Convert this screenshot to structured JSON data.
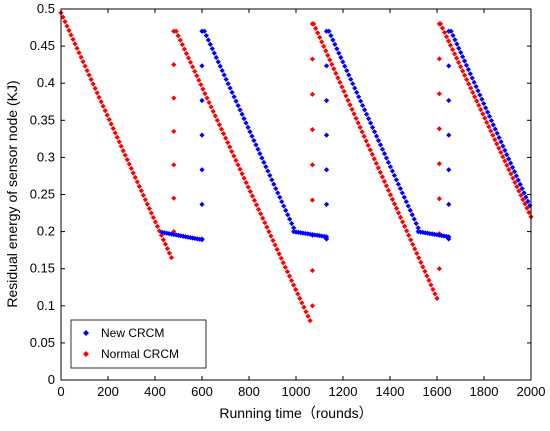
{
  "chart_data": {
    "type": "scatter",
    "xlabel": "Running time（rounds）",
    "ylabel": "Residual energy of sensor node (KJ)",
    "xlim": [
      0,
      2000
    ],
    "ylim": [
      0,
      0.5
    ],
    "xticks": [
      "0",
      "200",
      "400",
      "600",
      "800",
      "1000",
      "1200",
      "1400",
      "1600",
      "1800",
      "2000"
    ],
    "yticks": [
      "0",
      "0.05",
      "0.1",
      "0.15",
      "0.2",
      "0.25",
      "0.3",
      "0.35",
      "0.4",
      "0.45",
      "0.5"
    ],
    "grid": false,
    "legend_position": "bottom-left",
    "series": [
      {
        "name": "New CRCM",
        "color": "#0000ff",
        "marker": "diamond",
        "segments": [
          {
            "x": [
              430,
              600
            ],
            "y": [
              0.199,
              0.189
            ],
            "n": 18
          },
          {
            "x": [
              600,
              600
            ],
            "y": [
              0.19,
              0.47
            ],
            "n": 7
          },
          {
            "x": [
              610,
              990
            ],
            "y": [
              0.47,
              0.205
            ],
            "n": 46
          },
          {
            "x": [
              990,
              1130
            ],
            "y": [
              0.2,
              0.193
            ],
            "n": 15
          },
          {
            "x": [
              1130,
              1130
            ],
            "y": [
              0.19,
              0.47
            ],
            "n": 7
          },
          {
            "x": [
              1140,
              1520
            ],
            "y": [
              0.47,
              0.205
            ],
            "n": 46
          },
          {
            "x": [
              1520,
              1650
            ],
            "y": [
              0.2,
              0.193
            ],
            "n": 14
          },
          {
            "x": [
              1650,
              1650
            ],
            "y": [
              0.19,
              0.47
            ],
            "n": 7
          },
          {
            "x": [
              1660,
              1995
            ],
            "y": [
              0.47,
              0.235
            ],
            "n": 42
          }
        ]
      },
      {
        "name": "Normal CRCM",
        "color": "#ff0000",
        "marker": "diamond",
        "segments": [
          {
            "x": [
              0,
              470
            ],
            "y": [
              0.495,
              0.165
            ],
            "n": 56
          },
          {
            "x": [
              480,
              480
            ],
            "y": [
              0.2,
              0.47
            ],
            "n": 7
          },
          {
            "x": [
              490,
              1060
            ],
            "y": [
              0.47,
              0.08
            ],
            "n": 66
          },
          {
            "x": [
              1070,
              1070
            ],
            "y": [
              0.1,
              0.48
            ],
            "n": 9
          },
          {
            "x": [
              1075,
              1600
            ],
            "y": [
              0.48,
              0.11
            ],
            "n": 62
          },
          {
            "x": [
              1610,
              1610
            ],
            "y": [
              0.15,
              0.48
            ],
            "n": 8
          },
          {
            "x": [
              1615,
              2000
            ],
            "y": [
              0.48,
              0.22
            ],
            "n": 46
          }
        ]
      }
    ]
  }
}
